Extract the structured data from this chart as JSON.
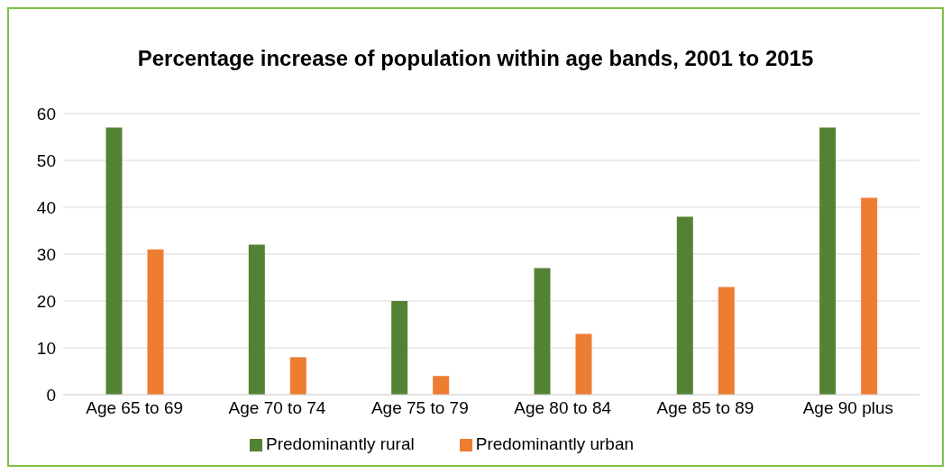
{
  "chart_data": {
    "type": "bar",
    "title": "Percentage increase of population within age bands, 2001 to 2015",
    "categories": [
      "Age 65 to 69",
      "Age 70 to 74",
      "Age 75 to 79",
      "Age 80 to 84",
      "Age 85 to 89",
      "Age 90 plus"
    ],
    "series": [
      {
        "name": "Predominantly rural",
        "color": "#548235",
        "values": [
          57,
          32,
          20,
          27,
          38,
          57
        ]
      },
      {
        "name": "Predominantly urban",
        "color": "#ed7d31",
        "values": [
          31,
          8,
          4,
          13,
          23,
          42
        ]
      }
    ],
    "ylim": [
      0,
      60
    ],
    "yticks": [
      0,
      10,
      20,
      30,
      40,
      50,
      60
    ],
    "grid": "y",
    "legend": "bottom"
  }
}
